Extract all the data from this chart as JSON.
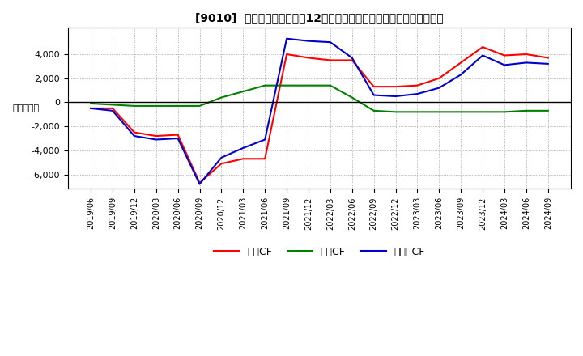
{
  "title": "[9010]  キャッシュフローの12か月移動合計の対前年同期増減額の推移",
  "ylabel": "（百万円）",
  "ylim": [
    -7200,
    6200
  ],
  "yticks": [
    -6000,
    -4000,
    -2000,
    0,
    2000,
    4000
  ],
  "legend_labels": [
    "営業CF",
    "投資CF",
    "フリーCF"
  ],
  "colors": {
    "operating": "#ff0000",
    "investing": "#008000",
    "free": "#0000cc"
  },
  "x_labels": [
    "2019/06",
    "2019/09",
    "2019/12",
    "2020/03",
    "2020/06",
    "2020/09",
    "2020/12",
    "2021/03",
    "2021/06",
    "2021/09",
    "2021/12",
    "2022/03",
    "2022/06",
    "2022/09",
    "2022/12",
    "2023/03",
    "2023/06",
    "2023/09",
    "2023/12",
    "2024/03",
    "2024/06",
    "2024/09"
  ],
  "operating_cf": [
    -500,
    -500,
    -2500,
    -2800,
    -2700,
    -6700,
    -5100,
    -4700,
    -4700,
    4000,
    3700,
    3500,
    3500,
    1300,
    1300,
    1400,
    2000,
    3300,
    4600,
    3900,
    4000,
    3700
  ],
  "investing_cf": [
    -100,
    -200,
    -300,
    -300,
    -300,
    -300,
    400,
    900,
    1400,
    1400,
    1400,
    1400,
    400,
    -700,
    -800,
    -800,
    -800,
    -800,
    -800,
    -800,
    -700,
    -700
  ],
  "free_cf": [
    -500,
    -700,
    -2800,
    -3100,
    -3000,
    -6800,
    -4600,
    -3800,
    -3100,
    5300,
    5100,
    5000,
    3700,
    600,
    500,
    700,
    1200,
    2300,
    3900,
    3100,
    3300,
    3200
  ]
}
